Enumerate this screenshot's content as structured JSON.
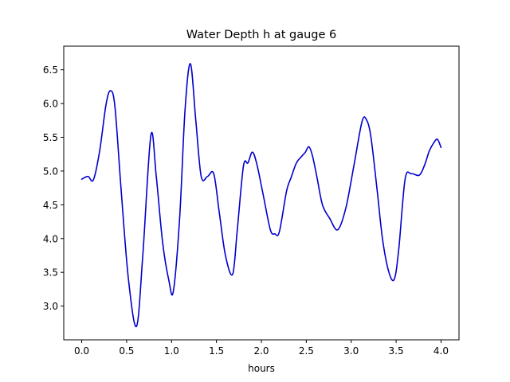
{
  "chart_data": {
    "type": "line",
    "title": "Water Depth h at gauge 6",
    "xlabel": "hours",
    "ylabel": "",
    "xlim": [
      -0.2,
      4.2
    ],
    "ylim": [
      2.5,
      6.85
    ],
    "xticks": [
      0.0,
      0.5,
      1.0,
      1.5,
      2.0,
      2.5,
      3.0,
      3.5,
      4.0
    ],
    "xtick_labels": [
      "0.0",
      "0.5",
      "1.0",
      "1.5",
      "2.0",
      "2.5",
      "3.0",
      "3.5",
      "4.0"
    ],
    "yticks": [
      3.0,
      3.5,
      4.0,
      4.5,
      5.0,
      5.5,
      6.0,
      6.5
    ],
    "ytick_labels": [
      "3.0",
      "3.5",
      "4.0",
      "4.5",
      "5.0",
      "5.5",
      "6.0",
      "6.5"
    ],
    "grid": false,
    "series": [
      {
        "color": "#0000cc",
        "x": [
          0.0,
          0.07,
          0.13,
          0.2,
          0.27,
          0.32,
          0.37,
          0.44,
          0.52,
          0.61,
          0.68,
          0.77,
          0.83,
          0.9,
          0.97,
          1.02,
          1.09,
          1.15,
          1.21,
          1.27,
          1.33,
          1.4,
          1.47,
          1.53,
          1.6,
          1.68,
          1.73,
          1.8,
          1.85,
          1.9,
          1.95,
          2.02,
          2.1,
          2.15,
          2.2,
          2.28,
          2.33,
          2.39,
          2.45,
          2.49,
          2.53,
          2.57,
          2.62,
          2.68,
          2.76,
          2.85,
          2.94,
          3.03,
          3.12,
          3.17,
          3.22,
          3.29,
          3.35,
          3.42,
          3.48,
          3.53,
          3.6,
          3.67,
          3.76,
          3.82,
          3.87,
          3.92,
          3.96,
          4.0
        ],
        "y": [
          4.88,
          4.92,
          4.87,
          5.3,
          5.98,
          6.19,
          5.95,
          4.7,
          3.4,
          2.7,
          3.75,
          5.53,
          4.92,
          3.95,
          3.38,
          3.22,
          4.3,
          5.9,
          6.59,
          5.75,
          4.92,
          4.92,
          4.96,
          4.4,
          3.75,
          3.47,
          4.1,
          5.07,
          5.12,
          5.28,
          5.1,
          4.65,
          4.13,
          4.07,
          4.1,
          4.7,
          4.9,
          5.12,
          5.22,
          5.28,
          5.36,
          5.22,
          4.9,
          4.5,
          4.3,
          4.13,
          4.45,
          5.08,
          5.73,
          5.76,
          5.5,
          4.7,
          3.98,
          3.5,
          3.4,
          3.85,
          4.88,
          4.96,
          4.94,
          5.1,
          5.3,
          5.42,
          5.47,
          5.35
        ]
      }
    ]
  }
}
